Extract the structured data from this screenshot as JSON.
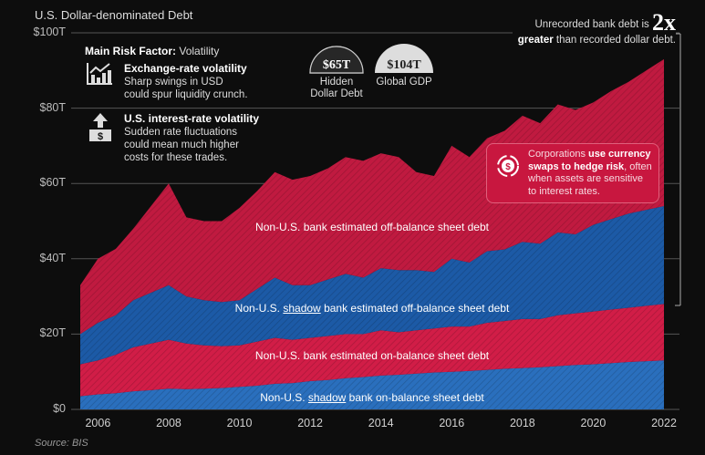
{
  "chart_data": {
    "type": "area",
    "stacked": true,
    "title": "U.S. Dollar-denominated Debt",
    "source": "Source: BIS",
    "ylim": [
      0,
      100
    ],
    "xlim": [
      2005.5,
      2022
    ],
    "y_ticks": [
      "$0",
      "$20T",
      "$40T",
      "$60T",
      "$80T",
      "$100T"
    ],
    "y_tick_values": [
      0,
      20,
      40,
      60,
      80,
      100
    ],
    "x_ticks": [
      "2006",
      "2008",
      "2010",
      "2012",
      "2014",
      "2016",
      "2018",
      "2020",
      "2022"
    ],
    "x_tick_values": [
      2006,
      2008,
      2010,
      2012,
      2014,
      2016,
      2018,
      2020,
      2022
    ],
    "grid": true,
    "x": [
      2005.5,
      2006,
      2006.5,
      2007,
      2007.5,
      2008,
      2008.5,
      2009,
      2009.5,
      2010,
      2010.5,
      2011,
      2011.5,
      2012,
      2012.5,
      2013,
      2013.5,
      2014,
      2014.5,
      2015,
      2015.5,
      2016,
      2016.5,
      2017,
      2017.5,
      2018,
      2018.5,
      2019,
      2019.5,
      2020,
      2020.5,
      2021,
      2021.5,
      2022
    ],
    "value_mode": "cumulative stack top, $T",
    "series": [
      {
        "name": "Non-U.S. shadow bank on-balance sheet debt",
        "label_pre": "Non-U.S. ",
        "label_u": "shadow",
        "label_post": " bank on-balance sheet debt",
        "color": "#2a6fbd",
        "values": [
          3.5,
          4,
          4.3,
          4.8,
          5.1,
          5.5,
          5.4,
          5.5,
          5.7,
          6,
          6.3,
          6.8,
          7,
          7.5,
          7.8,
          8.3,
          8.6,
          9,
          9.2,
          9.5,
          9.8,
          10,
          10.2,
          10.5,
          10.8,
          11,
          11.2,
          11.5,
          11.8,
          12,
          12.3,
          12.6,
          12.8,
          13
        ]
      },
      {
        "name": "Non-U.S. bank estimated on-balance sheet debt",
        "label_pre": "Non-U.S. bank estimated on-balance sheet debt",
        "label_u": "",
        "label_post": "",
        "color": "#d11d47",
        "values": [
          12,
          13,
          14.5,
          16.5,
          17.5,
          18.5,
          17.5,
          17,
          16.8,
          17,
          18,
          19,
          18.5,
          19,
          19.5,
          20,
          20,
          21,
          20.5,
          21,
          21.5,
          22,
          22,
          23,
          23.5,
          24,
          24,
          25,
          25.5,
          26,
          26.5,
          27,
          27.5,
          28
        ]
      },
      {
        "name": "Non-U.S. shadow bank estimated off-balance sheet debt",
        "label_pre": "Non-U.S. ",
        "label_u": "shadow",
        "label_post": " bank estimated off-balance sheet debt",
        "color": "#1c5aa6",
        "values": [
          20,
          23,
          25,
          29,
          31,
          33,
          30,
          29,
          28.5,
          29,
          32,
          35,
          33,
          33,
          34.5,
          36,
          35,
          37.5,
          37,
          37,
          36.5,
          40,
          39,
          42,
          42.5,
          44.5,
          44,
          47,
          46.5,
          49,
          50.5,
          52,
          53,
          54
        ]
      },
      {
        "name": "Non-U.S. bank estimated off-balance sheet debt",
        "label_pre": "Non-U.S. bank estimated off-balance sheet debt",
        "label_u": "",
        "label_post": "",
        "color": "#c01a40",
        "values": [
          33,
          40,
          42.6,
          48,
          54,
          60,
          51,
          50,
          50,
          53.5,
          58,
          63,
          61,
          62,
          64,
          67,
          66,
          68,
          67,
          63,
          62,
          70,
          67,
          72,
          74,
          78,
          76,
          81,
          79.5,
          81.5,
          84.5,
          87,
          90,
          93
        ]
      }
    ],
    "annotations": {
      "risk_title_bold": "Main Risk Factor:",
      "risk_title_rest": " Volatility",
      "risk1_title": "Exchange-rate volatility",
      "risk1_line1": "Sharp swings in USD",
      "risk1_line2": "could spur liquidity crunch.",
      "risk2_title": "U.S. interest-rate volatility",
      "risk2_line1": "Sudden rate fluctuations",
      "risk2_line2": "could mean much higher",
      "risk2_line3": "costs for these trades.",
      "hidden_value": "$65T",
      "hidden_label1": "Hidden",
      "hidden_label2": "Dollar Debt",
      "gdp_value": "$104T",
      "gdp_label": "Global GDP",
      "unrec_pre": "Unrecorded bank debt is ",
      "unrec_big": "2x",
      "unrec_bold": "greater",
      "unrec_rest": " than recorded dollar debt.",
      "corp_pre": "Corporations ",
      "corp_bold1": "use currency",
      "corp_bold2": "swaps to hedge risk",
      "corp_rest1": ", often",
      "corp_line3": "when assets are sensitive",
      "corp_line4": "to interest rates."
    }
  }
}
